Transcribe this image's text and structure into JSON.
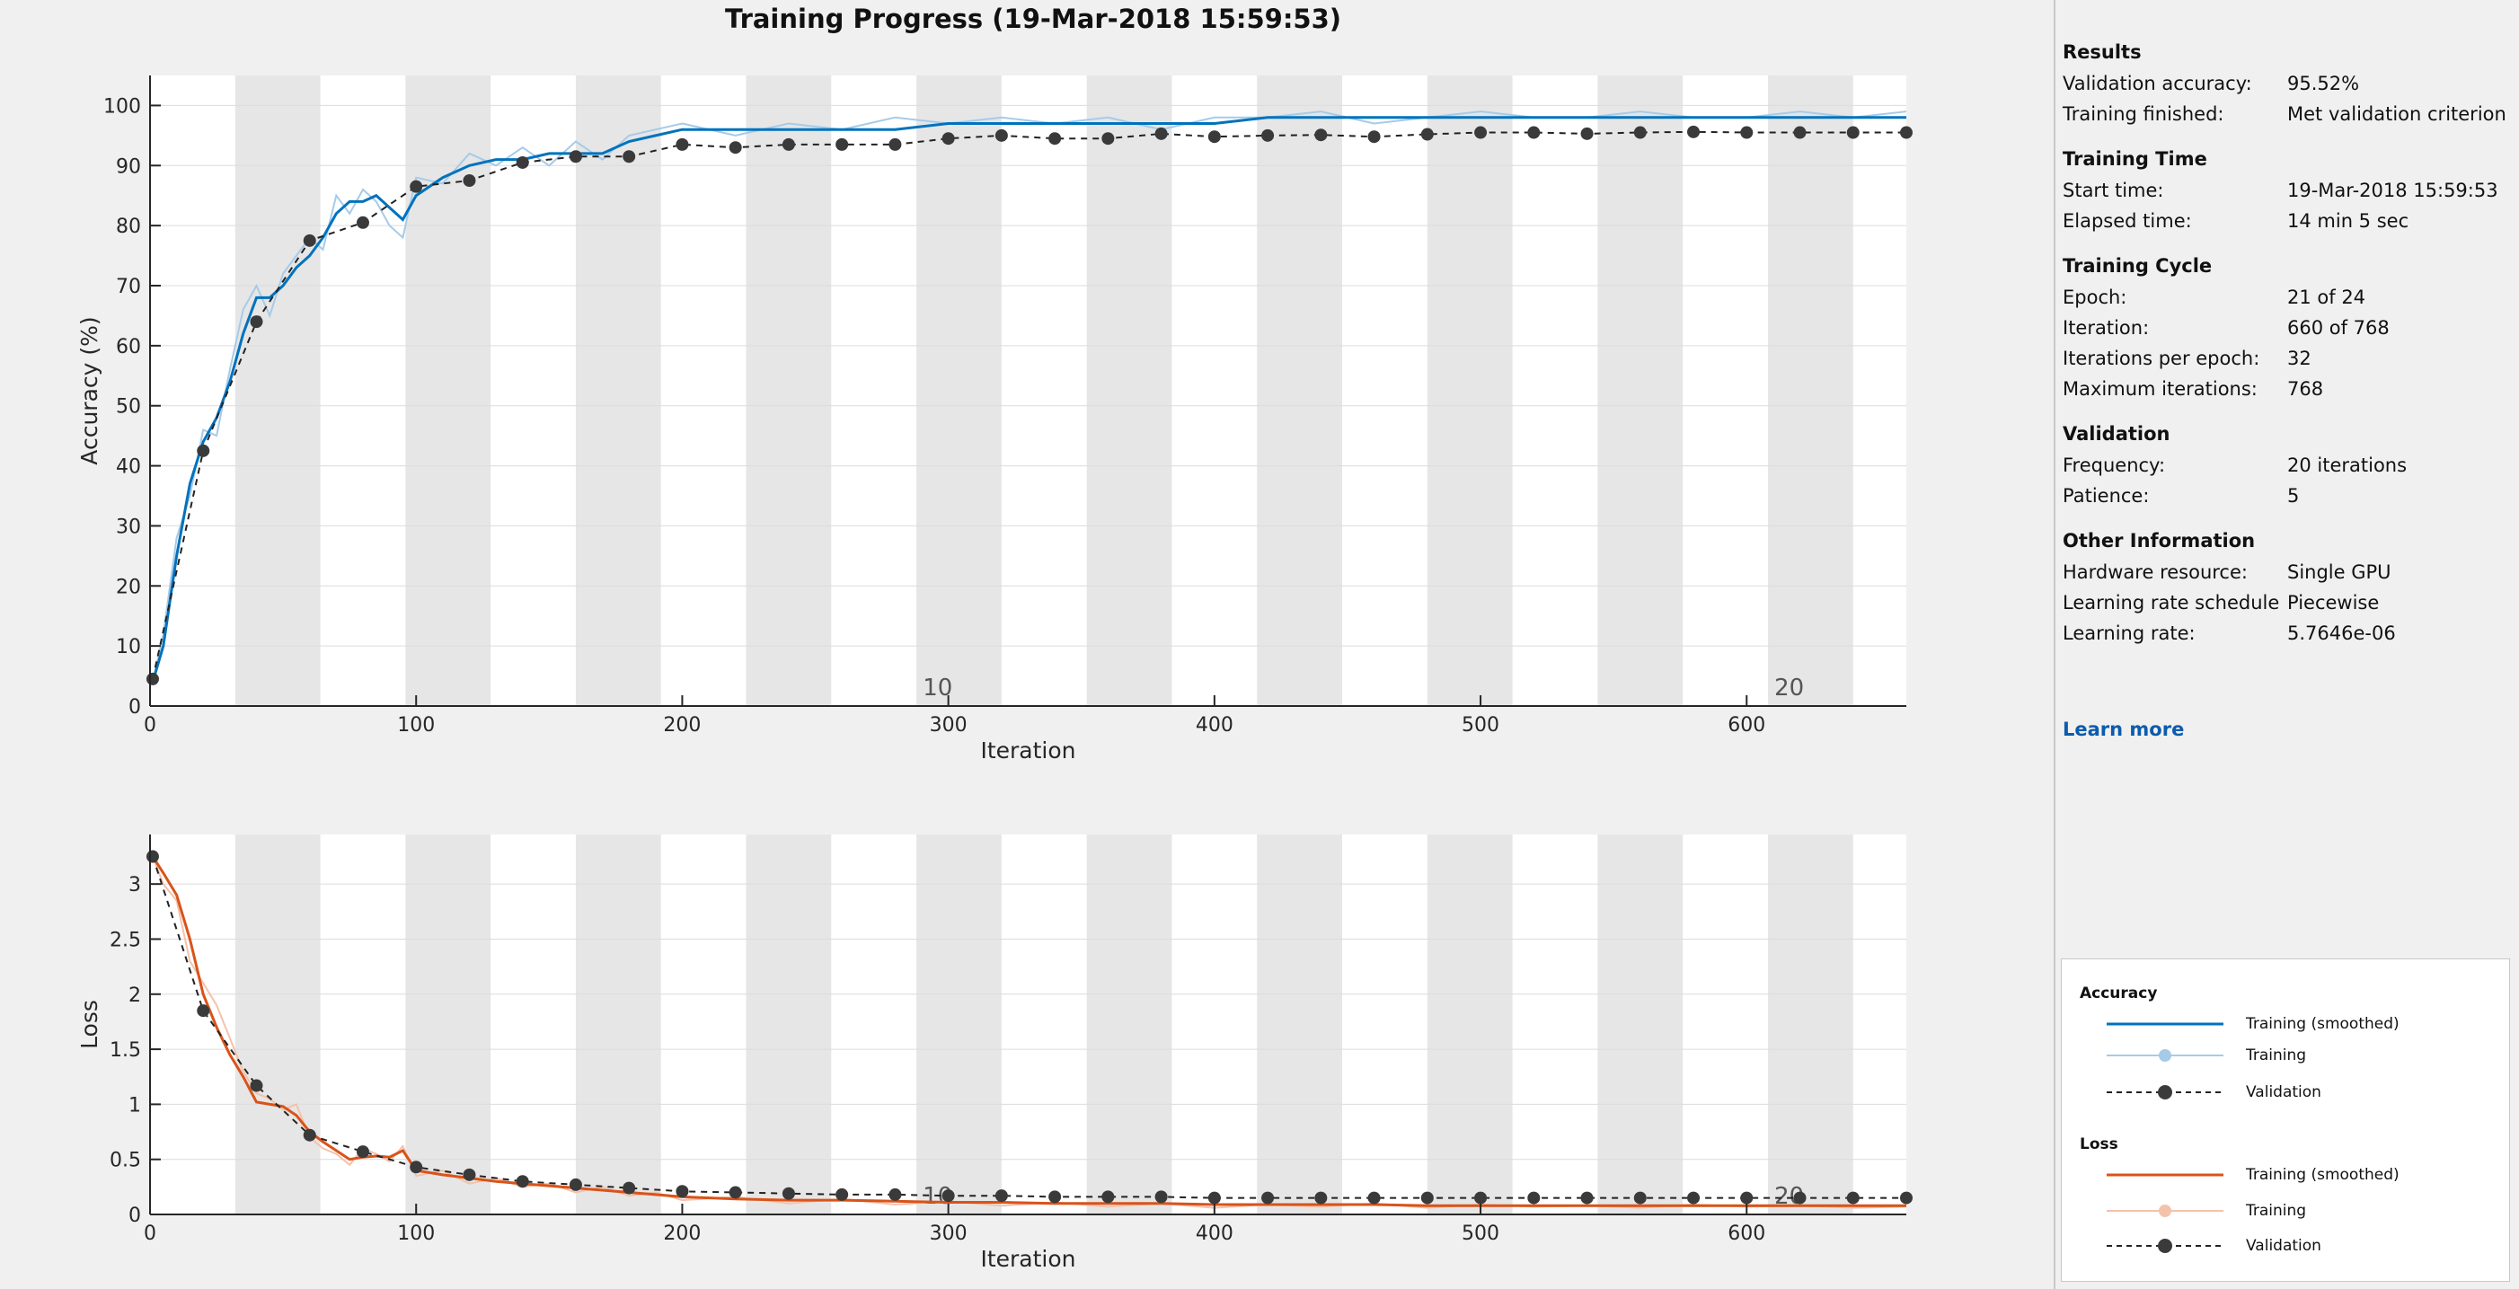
{
  "window": {
    "title": "Training Progress (19-Mar-2018 15:59:53)"
  },
  "colors": {
    "accuracy_smoothed": "#0072bd",
    "accuracy_raw": "#a6cbe8",
    "loss_smoothed": "#d95319",
    "loss_raw": "#f4c2ab",
    "validation": "#222222",
    "epoch_band": "#e6e6e6",
    "link": "#0b5cad"
  },
  "chart_data": [
    {
      "type": "line",
      "xlabel": "Iteration",
      "ylabel": "Accuracy (%)",
      "xlim": [
        0,
        660
      ],
      "ylim": [
        0,
        105
      ],
      "xticks": [
        0,
        100,
        200,
        300,
        400,
        500,
        600
      ],
      "yticks": [
        0,
        10,
        20,
        30,
        40,
        50,
        60,
        70,
        80,
        90,
        100
      ],
      "epoch_size": 32,
      "epoch_labels": [
        {
          "epoch": "10",
          "x": 296
        },
        {
          "epoch": "20",
          "x": 616
        }
      ],
      "series": [
        {
          "name": "Training (smoothed)",
          "x": [
            1,
            5,
            10,
            15,
            20,
            25,
            30,
            35,
            40,
            45,
            50,
            55,
            60,
            65,
            70,
            75,
            80,
            85,
            90,
            95,
            100,
            110,
            120,
            130,
            140,
            150,
            160,
            170,
            180,
            190,
            200,
            220,
            240,
            260,
            280,
            300,
            320,
            340,
            360,
            380,
            400,
            420,
            440,
            460,
            480,
            500,
            520,
            540,
            560,
            580,
            600,
            620,
            640,
            660
          ],
          "values": [
            4,
            10,
            25,
            37,
            44,
            48,
            54,
            62,
            68,
            68,
            70,
            73,
            75,
            78,
            82,
            84,
            84,
            85,
            83,
            81,
            85,
            88,
            90,
            91,
            91,
            92,
            92,
            92,
            94,
            95,
            96,
            96,
            96,
            96,
            96,
            97,
            97,
            97,
            97,
            97,
            97,
            98,
            98,
            98,
            98,
            98,
            98,
            98,
            98,
            98,
            98,
            98,
            98,
            98
          ]
        },
        {
          "name": "Training",
          "x": [
            1,
            5,
            10,
            15,
            20,
            25,
            30,
            35,
            40,
            45,
            50,
            55,
            60,
            65,
            70,
            75,
            80,
            85,
            90,
            95,
            100,
            110,
            120,
            130,
            140,
            150,
            160,
            170,
            180,
            190,
            200,
            220,
            240,
            260,
            280,
            300,
            320,
            340,
            360,
            380,
            400,
            420,
            440,
            460,
            480,
            500,
            520,
            540,
            560,
            580,
            600,
            620,
            640,
            660
          ],
          "values": [
            4,
            12,
            28,
            35,
            46,
            45,
            56,
            66,
            70,
            65,
            72,
            75,
            78,
            76,
            85,
            82,
            86,
            84,
            80,
            78,
            88,
            87,
            92,
            90,
            93,
            90,
            94,
            91,
            95,
            96,
            97,
            95,
            97,
            96,
            98,
            97,
            98,
            97,
            98,
            96,
            98,
            98,
            99,
            97,
            98,
            99,
            98,
            98,
            99,
            98,
            98,
            99,
            98,
            99
          ]
        },
        {
          "name": "Validation",
          "x": [
            1,
            20,
            40,
            60,
            80,
            100,
            120,
            140,
            160,
            180,
            200,
            220,
            240,
            260,
            280,
            300,
            320,
            340,
            360,
            380,
            400,
            420,
            440,
            460,
            480,
            500,
            520,
            540,
            560,
            580,
            600,
            620,
            640,
            660
          ],
          "values": [
            4.5,
            42.5,
            64,
            77.5,
            80.5,
            86.5,
            87.5,
            90.5,
            91.5,
            91.5,
            93.5,
            93,
            93.5,
            93.5,
            93.5,
            94.5,
            95,
            94.5,
            94.5,
            95.3,
            94.8,
            95,
            95.1,
            94.8,
            95.2,
            95.5,
            95.5,
            95.3,
            95.5,
            95.6,
            95.5,
            95.5,
            95.5,
            95.5
          ]
        }
      ]
    },
    {
      "type": "line",
      "xlabel": "Iteration",
      "ylabel": "Loss",
      "xlim": [
        0,
        660
      ],
      "ylim": [
        0,
        3.45
      ],
      "xticks": [
        0,
        100,
        200,
        300,
        400,
        500,
        600
      ],
      "yticks": [
        0,
        0.5,
        1,
        1.5,
        2,
        2.5,
        3
      ],
      "epoch_size": 32,
      "epoch_labels": [
        {
          "epoch": "10",
          "x": 296
        },
        {
          "epoch": "20",
          "x": 616
        }
      ],
      "series": [
        {
          "name": "Training (smoothed)",
          "x": [
            1,
            5,
            10,
            15,
            20,
            25,
            30,
            35,
            40,
            45,
            50,
            55,
            60,
            65,
            70,
            75,
            80,
            85,
            90,
            95,
            100,
            110,
            120,
            130,
            140,
            150,
            160,
            170,
            180,
            190,
            200,
            220,
            240,
            260,
            280,
            300,
            320,
            340,
            360,
            380,
            400,
            420,
            440,
            460,
            480,
            500,
            520,
            540,
            560,
            580,
            600,
            620,
            640,
            660
          ],
          "values": [
            3.25,
            3.1,
            2.9,
            2.5,
            2.0,
            1.7,
            1.45,
            1.25,
            1.02,
            1.0,
            0.98,
            0.9,
            0.75,
            0.66,
            0.58,
            0.5,
            0.52,
            0.53,
            0.52,
            0.58,
            0.4,
            0.36,
            0.33,
            0.3,
            0.28,
            0.26,
            0.24,
            0.22,
            0.2,
            0.18,
            0.16,
            0.14,
            0.13,
            0.13,
            0.12,
            0.11,
            0.11,
            0.1,
            0.1,
            0.1,
            0.09,
            0.09,
            0.09,
            0.09,
            0.08,
            0.08,
            0.08,
            0.08,
            0.08,
            0.08,
            0.08,
            0.08,
            0.08,
            0.08
          ]
        },
        {
          "name": "Training",
          "x": [
            1,
            5,
            10,
            15,
            20,
            25,
            30,
            35,
            40,
            45,
            50,
            55,
            60,
            65,
            70,
            75,
            80,
            85,
            90,
            95,
            100,
            110,
            120,
            130,
            140,
            150,
            160,
            170,
            180,
            190,
            200,
            220,
            240,
            260,
            280,
            300,
            320,
            340,
            360,
            380,
            400,
            420,
            440,
            460,
            480,
            500,
            520,
            540,
            560,
            580,
            600,
            620,
            640,
            660
          ],
          "values": [
            3.25,
            3.0,
            2.85,
            2.3,
            2.1,
            1.9,
            1.6,
            1.3,
            1.1,
            1.05,
            0.95,
            1.0,
            0.7,
            0.6,
            0.55,
            0.45,
            0.6,
            0.55,
            0.48,
            0.62,
            0.35,
            0.4,
            0.28,
            0.33,
            0.25,
            0.28,
            0.2,
            0.25,
            0.17,
            0.2,
            0.13,
            0.16,
            0.1,
            0.14,
            0.09,
            0.12,
            0.08,
            0.11,
            0.07,
            0.1,
            0.06,
            0.09,
            0.07,
            0.1,
            0.06,
            0.09,
            0.07,
            0.08,
            0.06,
            0.09,
            0.07,
            0.08,
            0.06,
            0.07
          ]
        },
        {
          "name": "Validation",
          "x": [
            1,
            20,
            40,
            60,
            80,
            100,
            120,
            140,
            160,
            180,
            200,
            220,
            240,
            260,
            280,
            300,
            320,
            340,
            360,
            380,
            400,
            420,
            440,
            460,
            480,
            500,
            520,
            540,
            560,
            580,
            600,
            620,
            640,
            660
          ],
          "values": [
            3.25,
            1.85,
            1.17,
            0.72,
            0.57,
            0.43,
            0.36,
            0.3,
            0.27,
            0.24,
            0.21,
            0.2,
            0.19,
            0.18,
            0.18,
            0.17,
            0.17,
            0.16,
            0.16,
            0.16,
            0.15,
            0.15,
            0.15,
            0.15,
            0.15,
            0.15,
            0.15,
            0.15,
            0.15,
            0.15,
            0.15,
            0.15,
            0.15,
            0.15
          ]
        }
      ]
    }
  ],
  "info": {
    "results": {
      "heading": "Results",
      "rows": [
        {
          "label": "Validation accuracy:",
          "value": "95.52%"
        },
        {
          "label": "Training finished:",
          "value": "Met validation criterion"
        }
      ]
    },
    "training_time": {
      "heading": "Training Time",
      "rows": [
        {
          "label": "Start time:",
          "value": "19-Mar-2018 15:59:53"
        },
        {
          "label": "Elapsed time:",
          "value": "14 min 5 sec"
        }
      ]
    },
    "training_cycle": {
      "heading": "Training Cycle",
      "rows": [
        {
          "label": "Epoch:",
          "value": "21 of 24"
        },
        {
          "label": "Iteration:",
          "value": "660 of 768"
        },
        {
          "label": "Iterations per epoch:",
          "value": "32"
        },
        {
          "label": "Maximum iterations:",
          "value": "768"
        }
      ]
    },
    "validation": {
      "heading": "Validation",
      "rows": [
        {
          "label": "Frequency:",
          "value": "20 iterations"
        },
        {
          "label": "Patience:",
          "value": "5"
        }
      ]
    },
    "other": {
      "heading": "Other Information",
      "rows": [
        {
          "label": "Hardware resource:",
          "value": "Single GPU"
        },
        {
          "label": "Learning rate schedule",
          "value": "Piecewise"
        },
        {
          "label": "Learning rate:",
          "value": "5.7646e-06"
        }
      ]
    },
    "learn_more": "Learn more"
  },
  "legend": {
    "accuracy": {
      "heading": "Accuracy",
      "items": [
        "Training (smoothed)",
        "Training",
        "Validation"
      ]
    },
    "loss": {
      "heading": "Loss",
      "items": [
        "Training (smoothed)",
        "Training",
        "Validation"
      ]
    }
  }
}
